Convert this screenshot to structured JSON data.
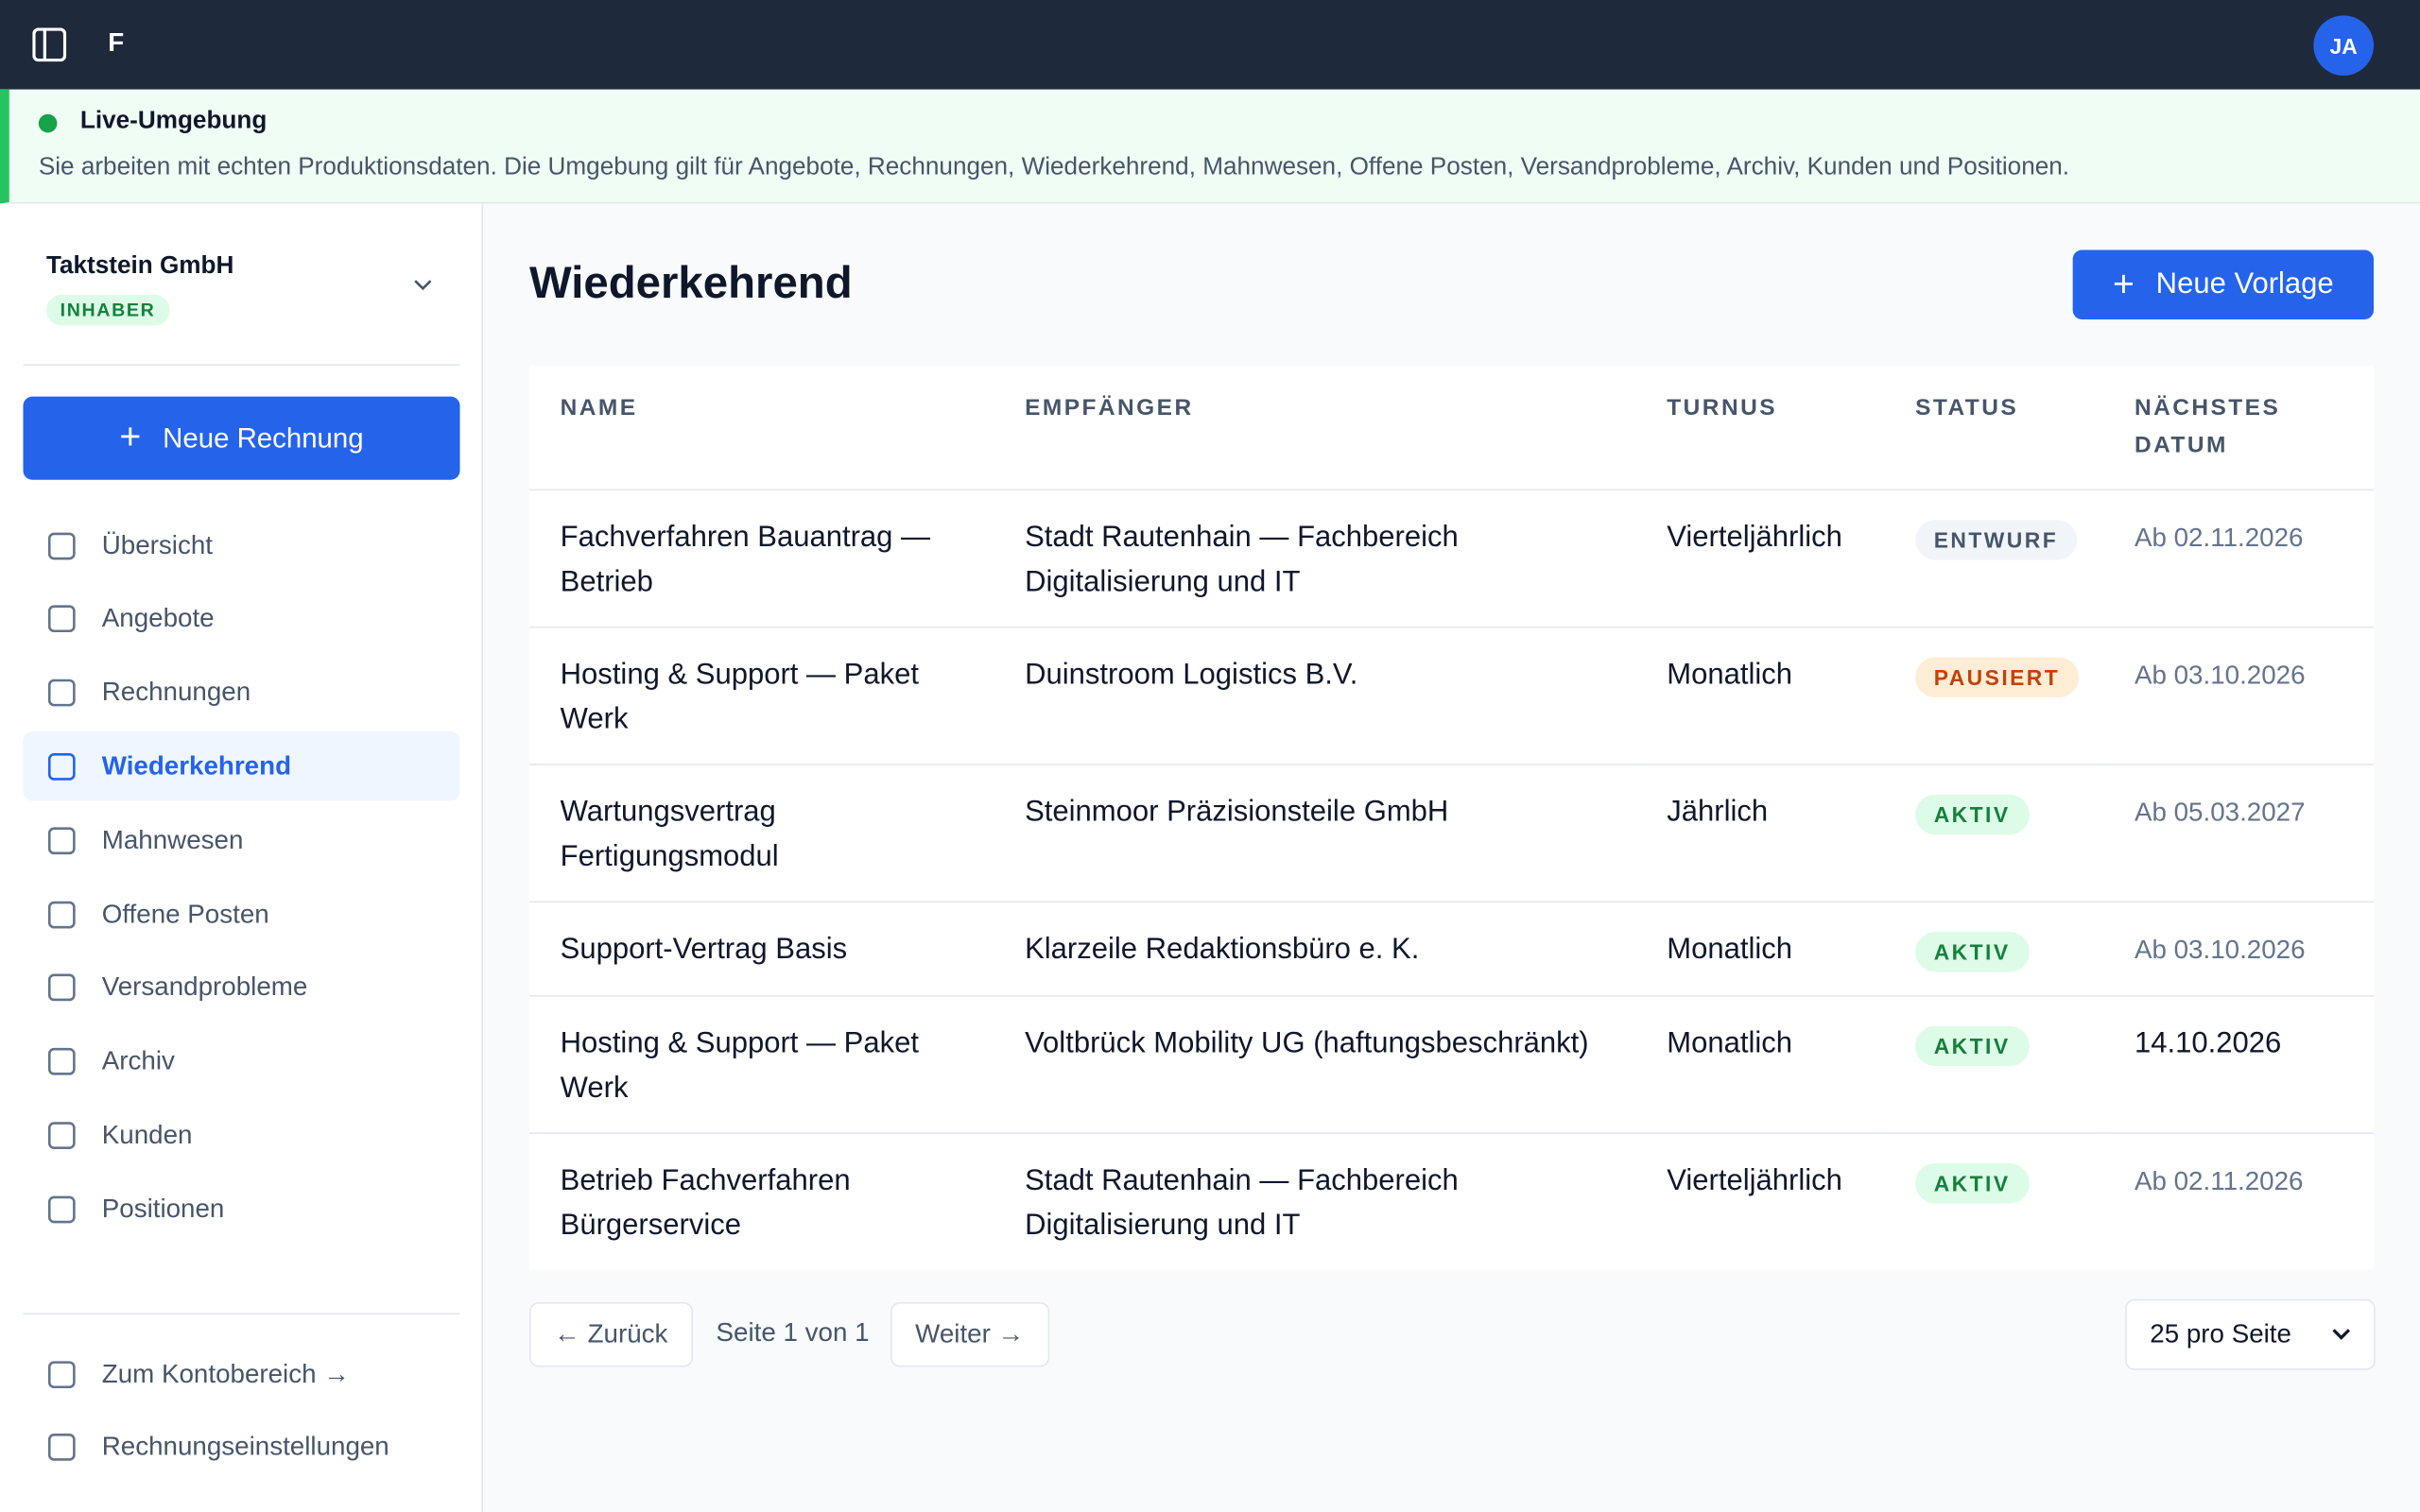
{
  "topbar": {
    "logo": "F",
    "avatar": "JA"
  },
  "banner": {
    "title": "Live-Umgebung",
    "text": "Sie arbeiten mit echten Produktionsdaten. Die Umgebung gilt für Angebote, Rechnungen, Wiederkehrend, Mahnwesen, Offene Posten, Versandprobleme, Archiv, Kunden und Positionen."
  },
  "sidebar": {
    "company": "Taktstein GmbH",
    "role": "INHABER",
    "new_button": "Neue Rechnung",
    "nav": [
      {
        "label": "Übersicht"
      },
      {
        "label": "Angebote"
      },
      {
        "label": "Rechnungen"
      },
      {
        "label": "Wiederkehrend",
        "active": true
      },
      {
        "label": "Mahnwesen"
      },
      {
        "label": "Offene Posten"
      },
      {
        "label": "Versandprobleme"
      },
      {
        "label": "Archiv"
      },
      {
        "label": "Kunden"
      },
      {
        "label": "Positionen"
      }
    ],
    "footer": [
      {
        "label": "Zum Kontobereich →"
      },
      {
        "label": "Rechnungseinstellungen"
      }
    ]
  },
  "main": {
    "title": "Wiederkehrend",
    "new_button": "Neue Vorlage",
    "table": {
      "headers": [
        "NAME",
        "EMPFÄNGER",
        "TURNUS",
        "STATUS",
        "NÄCHSTES DATUM"
      ],
      "rows": [
        [
          "Fachverfahren Bauantrag — Betrieb",
          "Stadt Rautenhain — Fachbereich Digitalisierung und IT",
          "Vierteljährlich",
          {
            "label": "ENTWURF",
            "color": "#475569",
            "bg": "#f1f5f9"
          },
          {
            "label": "Ab 02.11.2026",
            "color": "#64748b"
          }
        ],
        [
          "Hosting & Support — Paket Werk",
          "Duinstroom Logistics B.V.",
          "Monatlich",
          {
            "label": "PAUSIERT",
            "color": "#c2410c",
            "bg": "#ffedd5"
          },
          {
            "label": "Ab 03.10.2026",
            "color": "#64748b"
          }
        ],
        [
          "Wartungsvertrag Fertigungsmodul",
          "Steinmoor Präzisionsteile GmbH",
          "Jährlich",
          {
            "label": "AKTIV",
            "color": "#15803d",
            "bg": "#dcfce7"
          },
          {
            "label": "Ab 05.03.2027",
            "color": "#64748b"
          }
        ],
        [
          "Support-Vertrag Basis",
          "Klarzeile Redaktionsbüro e. K.",
          "Monatlich",
          {
            "label": "AKTIV",
            "color": "#15803d",
            "bg": "#dcfce7"
          },
          {
            "label": "Ab 03.10.2026",
            "color": "#64748b"
          }
        ],
        [
          "Hosting & Support — Paket Werk",
          "Voltbrück Mobility UG (haftungsbeschränkt)",
          "Monatlich",
          {
            "label": "AKTIV",
            "color": "#15803d",
            "bg": "#dcfce7"
          },
          {
            "label": "14.10.2026",
            "color": "#0f172a"
          }
        ],
        [
          "Betrieb Fachverfahren Bürgerservice",
          "Stadt Rautenhain — Fachbereich Digitalisierung und IT",
          "Vierteljährlich",
          {
            "label": "AKTIV",
            "color": "#15803d",
            "bg": "#dcfce7"
          },
          {
            "label": "Ab 02.11.2026",
            "color": "#64748b"
          }
        ]
      ]
    },
    "pagination": {
      "prev": "← Zurück",
      "info": "Seite 1 von 1",
      "next": "Weiter →",
      "per_page": "25 pro Seite"
    }
  }
}
